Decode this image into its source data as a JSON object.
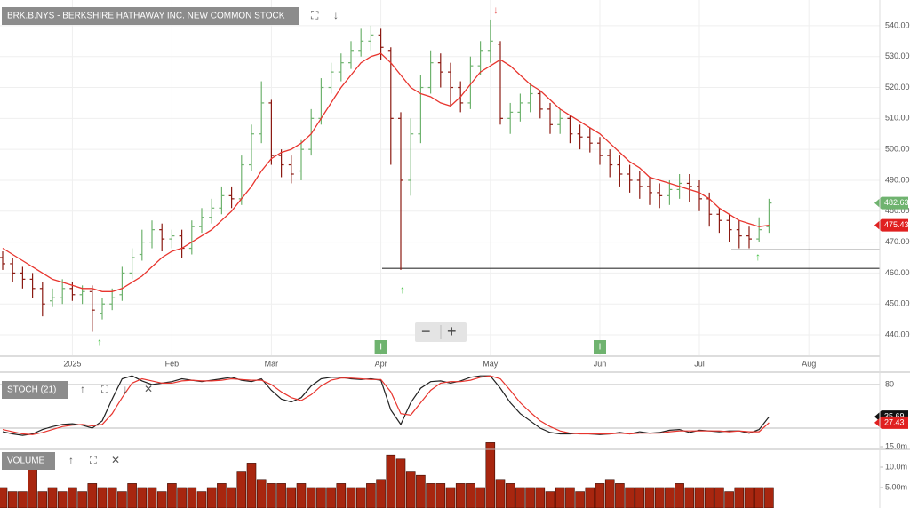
{
  "chart_data": [
    {
      "type": "ohlc",
      "title": "BRK.B.NYS - BERKSHIRE HATHAWAY INC. NEW COMMON STOCK",
      "categories": [
        null,
        null,
        null,
        null,
        null,
        null,
        null,
        "2025",
        null,
        null,
        null,
        null,
        null,
        null,
        null,
        null,
        null,
        "Feb",
        null,
        null,
        null,
        null,
        null,
        null,
        null,
        null,
        null,
        "Mar",
        null,
        null,
        null,
        null,
        null,
        null,
        null,
        null,
        null,
        null,
        "Apr",
        null,
        null,
        null,
        null,
        null,
        null,
        null,
        null,
        null,
        null,
        "May",
        null,
        null,
        null,
        null,
        null,
        null,
        null,
        null,
        null,
        null,
        "Jun",
        null,
        null,
        null,
        null,
        null,
        null,
        null,
        null,
        null,
        "Jul",
        null,
        null,
        null,
        null,
        null,
        null,
        null,
        null,
        null,
        null,
        "Aug",
        null,
        null,
        null,
        null,
        null,
        null
      ],
      "open": [
        465,
        463,
        460,
        458,
        455,
        451,
        452,
        455,
        453,
        454,
        447,
        450,
        453,
        460,
        466,
        470,
        474,
        471,
        472,
        468,
        475,
        478,
        481,
        485,
        484,
        495,
        505,
        515,
        498,
        495,
        493,
        500,
        510,
        520,
        525,
        528,
        532,
        535,
        537,
        532,
        510,
        490,
        505,
        520,
        528,
        525,
        520,
        515,
        527,
        532,
        534,
        510,
        512,
        515,
        518,
        513,
        508,
        510,
        505,
        504,
        502,
        498,
        495,
        492,
        490,
        488,
        486,
        485,
        487,
        489,
        488,
        484,
        479,
        477,
        474,
        472,
        471,
        475,
        null,
        null,
        null,
        null,
        null,
        null,
        null,
        null,
        null,
        null
      ],
      "high": [
        467,
        465,
        462,
        460,
        457,
        455,
        458,
        457,
        456,
        456,
        452,
        455,
        462,
        468,
        474,
        477,
        476,
        474,
        474,
        477,
        481,
        484,
        488,
        488,
        498,
        508,
        522,
        516,
        500,
        498,
        503,
        513,
        523,
        528,
        531,
        535,
        539,
        540,
        539,
        533,
        512,
        510,
        524,
        532,
        531,
        528,
        522,
        530,
        535,
        542,
        535,
        515,
        518,
        521,
        519,
        515,
        513,
        511,
        508,
        507,
        504,
        500,
        498,
        495,
        493,
        491,
        489,
        490,
        492,
        492,
        490,
        486,
        481,
        479,
        477,
        475,
        478,
        484,
        null,
        null,
        null,
        null,
        null,
        null,
        null,
        null,
        null,
        null
      ],
      "low": [
        461,
        457,
        455,
        452,
        446,
        449,
        450,
        451,
        450,
        441,
        445,
        448,
        451,
        458,
        464,
        468,
        467,
        468,
        465,
        466,
        473,
        476,
        479,
        481,
        482,
        493,
        502,
        495,
        491,
        489,
        490,
        498,
        508,
        518,
        522,
        526,
        530,
        532,
        529,
        495,
        461,
        485,
        502,
        518,
        520,
        514,
        512,
        513,
        524,
        528,
        508,
        505,
        509,
        512,
        510,
        505,
        505,
        502,
        500,
        499,
        495,
        491,
        488,
        486,
        484,
        482,
        481,
        482,
        484,
        483,
        480,
        475,
        473,
        470,
        468,
        468,
        470,
        473,
        null,
        null,
        null,
        null,
        null,
        null,
        null,
        null,
        null,
        null
      ],
      "close": [
        463,
        460,
        458,
        455,
        450,
        452,
        455,
        453,
        454,
        448,
        450,
        452,
        460,
        465,
        470,
        474,
        471,
        472,
        468,
        475,
        478,
        481,
        485,
        484,
        495,
        505,
        515,
        498,
        495,
        492,
        500,
        510,
        520,
        525,
        528,
        532,
        535,
        537,
        533,
        510,
        490,
        505,
        520,
        528,
        525,
        520,
        515,
        527,
        532,
        535,
        510,
        512,
        515,
        518,
        513,
        508,
        510,
        505,
        504,
        502,
        498,
        495,
        492,
        490,
        488,
        486,
        485,
        487,
        489,
        488,
        484,
        479,
        477,
        474,
        472,
        471,
        474,
        482.63,
        null,
        null,
        null,
        null,
        null,
        null,
        null,
        null,
        null,
        null
      ],
      "up_color": "#6fb36f",
      "down_color": "#8b1a12",
      "sma": {
        "color": "#e8352e",
        "values": [
          468,
          466,
          464,
          462,
          460,
          458,
          457,
          456,
          455,
          455,
          454,
          454,
          455,
          457,
          459,
          462,
          465,
          467,
          468,
          470,
          472,
          474,
          477,
          480,
          484,
          488,
          493,
          497,
          499,
          500,
          502,
          505,
          510,
          515,
          520,
          524,
          528,
          530,
          531,
          528,
          524,
          520,
          518,
          517,
          515,
          514,
          517,
          521,
          525,
          527,
          529,
          527,
          524,
          521,
          519,
          516,
          513,
          511,
          509,
          507,
          505,
          502,
          499,
          496,
          494,
          491,
          490,
          489,
          488,
          487,
          486,
          484,
          481,
          479,
          477,
          476,
          475,
          475.43,
          null,
          null,
          null,
          null,
          null,
          null,
          null,
          null,
          null,
          null
        ]
      },
      "levels": [
        461.5,
        467.5
      ],
      "events": [
        "I",
        "I"
      ],
      "ylim": [
        433.4,
        548.3
      ],
      "yticks": [
        {
          "value": 440,
          "label": "440.00"
        },
        {
          "value": 450,
          "label": "450.00"
        },
        {
          "value": 460,
          "label": "460.00"
        },
        {
          "value": 470,
          "label": "470.00"
        },
        {
          "value": 480,
          "label": "480.00"
        },
        {
          "value": 490,
          "label": "490.00"
        },
        {
          "value": 500,
          "label": "500.00"
        },
        {
          "value": 510,
          "label": "510.00"
        },
        {
          "value": 520,
          "label": "520.00"
        },
        {
          "value": 530,
          "label": "530.00"
        },
        {
          "value": 540,
          "label": "540.00"
        }
      ],
      "grid": true
    },
    {
      "type": "line",
      "title": "STOCH (21)",
      "series": [
        {
          "color": "#222222",
          "values": [
            15,
            12,
            10,
            12,
            18,
            22,
            25,
            26,
            24,
            20,
            30,
            60,
            88,
            92,
            85,
            80,
            82,
            84,
            88,
            86,
            84,
            86,
            88,
            90,
            86,
            84,
            88,
            72,
            60,
            56,
            62,
            78,
            88,
            90,
            90,
            88,
            87,
            88,
            86,
            45,
            25,
            55,
            75,
            84,
            85,
            82,
            85,
            90,
            92,
            92,
            75,
            55,
            40,
            30,
            20,
            14,
            12,
            12,
            13,
            12,
            11,
            12,
            14,
            12,
            15,
            13,
            14,
            17,
            18,
            14,
            17,
            16,
            15,
            16,
            16,
            13,
            18,
            35.69,
            null,
            null,
            null,
            null,
            null,
            null,
            null,
            null,
            null,
            null
          ]
        },
        {
          "color": "#e8352e",
          "values": [
            18,
            15,
            12,
            11,
            14,
            18,
            22,
            24,
            25,
            23,
            25,
            40,
            62,
            82,
            88,
            85,
            82,
            82,
            85,
            86,
            85,
            85,
            86,
            88,
            87,
            86,
            86,
            80,
            70,
            62,
            58,
            66,
            78,
            86,
            89,
            89,
            88,
            87,
            87,
            70,
            40,
            38,
            55,
            72,
            82,
            84,
            84,
            86,
            90,
            92,
            88,
            72,
            55,
            42,
            30,
            22,
            16,
            13,
            12,
            12,
            12,
            12,
            13,
            12,
            13,
            13,
            13,
            15,
            16,
            16,
            16,
            16,
            16,
            15,
            16,
            15,
            15,
            27.43,
            null,
            null,
            null,
            null,
            null,
            null,
            null,
            null,
            null,
            null
          ]
        }
      ],
      "levels": [
        20
      ],
      "ylim": [
        -8.2,
        94.7
      ],
      "yticks": [
        80
      ]
    },
    {
      "type": "bar",
      "title": "VOLUME",
      "color": "#a8260f",
      "values": [
        5,
        4,
        4,
        10,
        4,
        5,
        4,
        5,
        4,
        6,
        5,
        5,
        4,
        6,
        5,
        5,
        4,
        6,
        5,
        5,
        4,
        5,
        6,
        5,
        9,
        11,
        7,
        6,
        6,
        5,
        6,
        5,
        5,
        5,
        6,
        5,
        5,
        6,
        7,
        13,
        12,
        9,
        8,
        6,
        6,
        5,
        6,
        6,
        5,
        16,
        7,
        6,
        5,
        5,
        5,
        4,
        5,
        5,
        4,
        5,
        6,
        7,
        6,
        5,
        5,
        5,
        5,
        5,
        6,
        5,
        5,
        5,
        5,
        4,
        5,
        5,
        5,
        5,
        null,
        null,
        null,
        null,
        null,
        null,
        null,
        null,
        null,
        null
      ],
      "ylim": [
        0,
        15.65
      ],
      "yticks": [
        {
          "value": 5,
          "label": "5.00m"
        },
        {
          "value": 10,
          "label": "10.0m"
        },
        {
          "value": 15,
          "label": "15.0m"
        }
      ]
    }
  ]
}
